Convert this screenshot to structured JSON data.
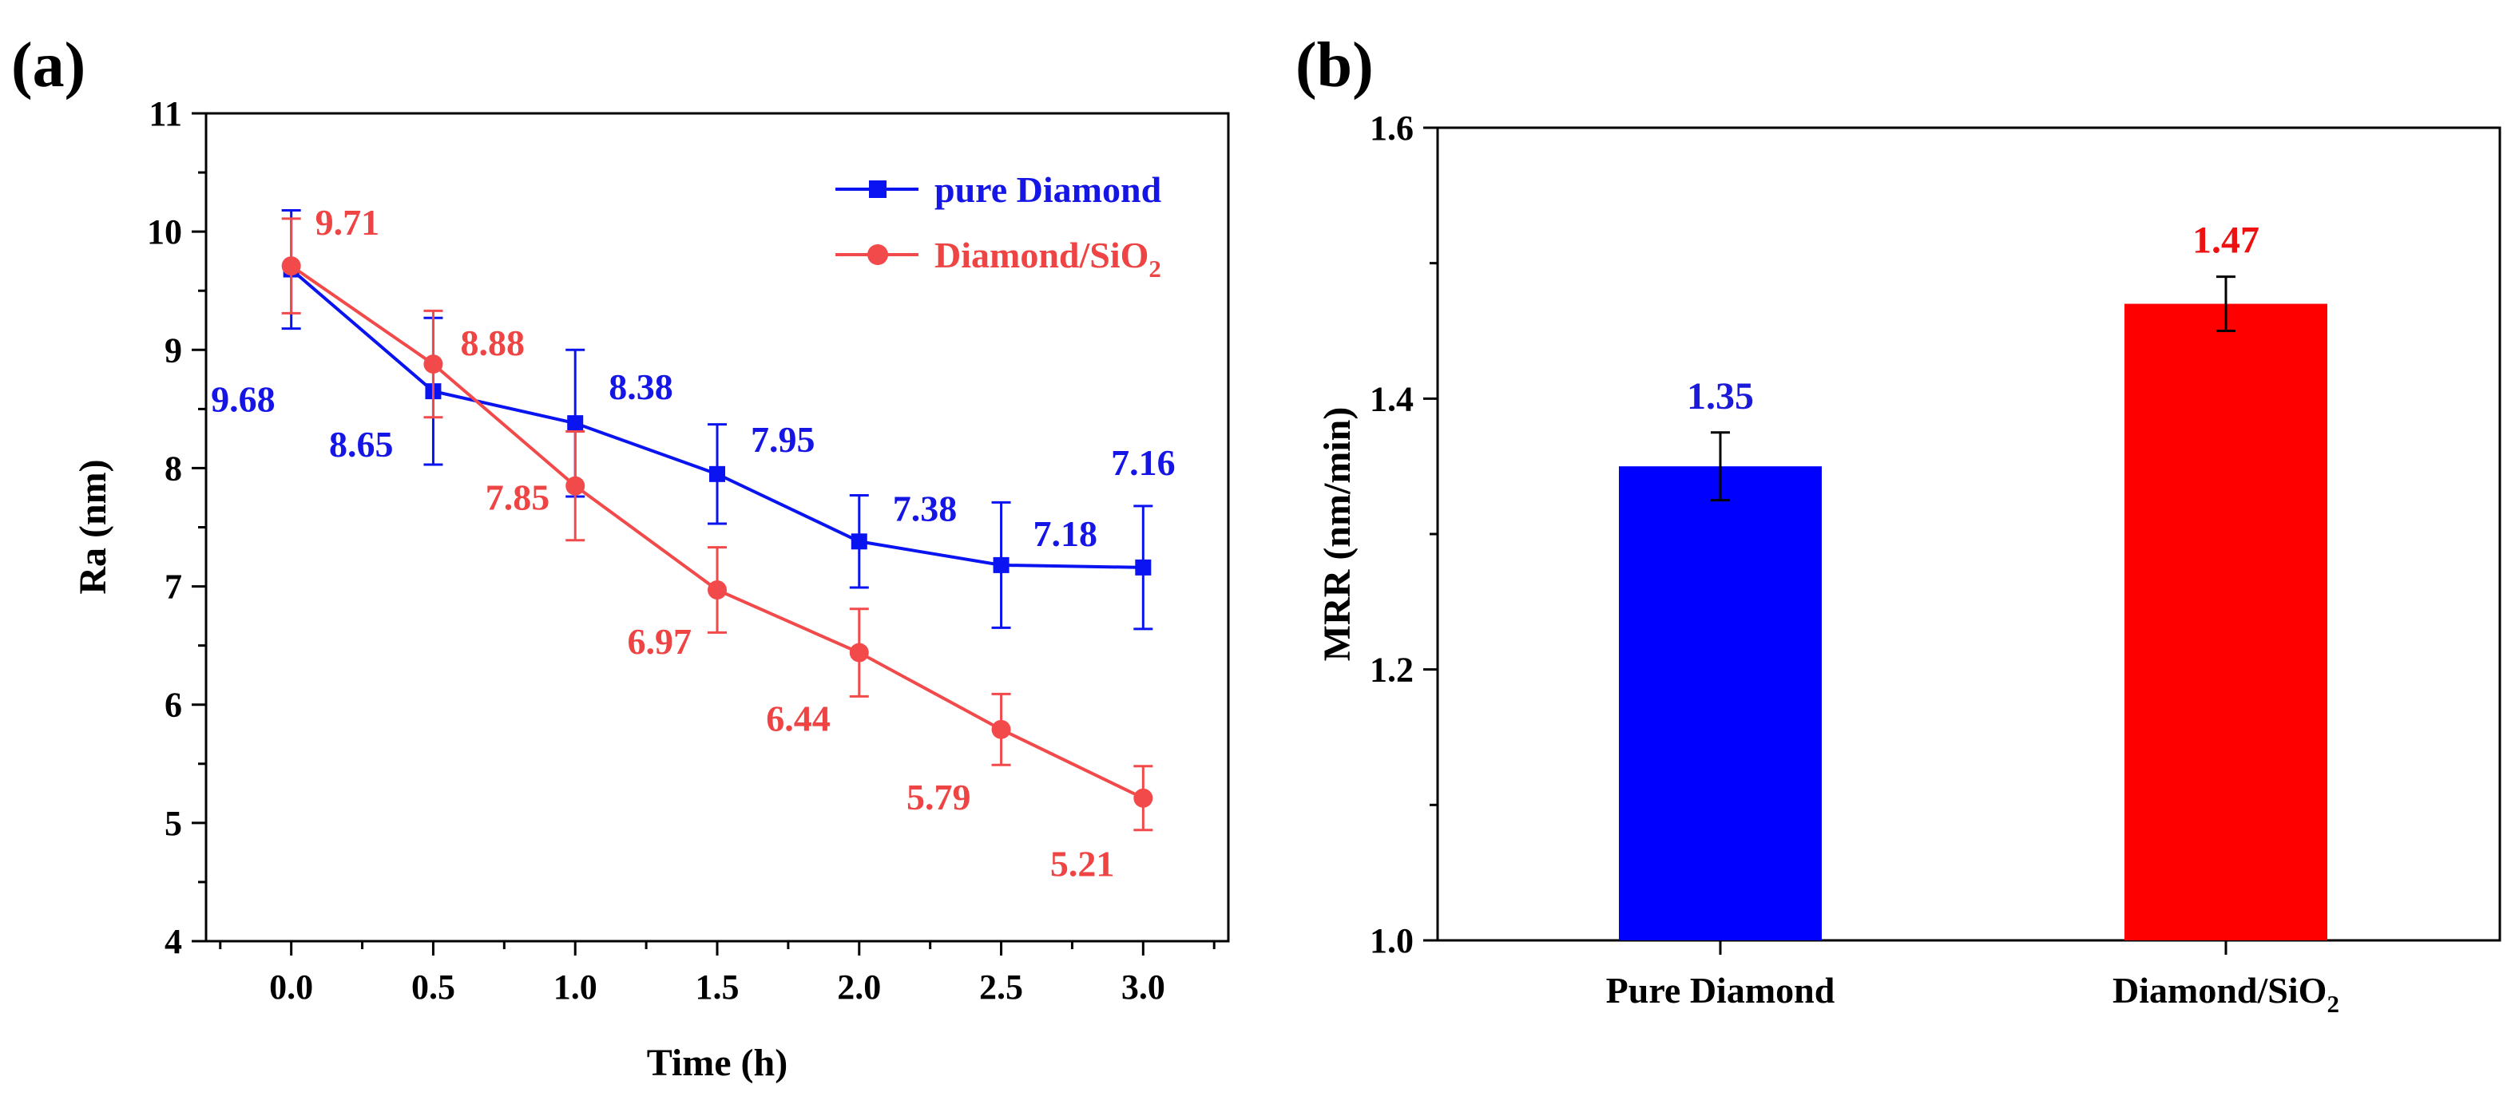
{
  "chart_data": [
    {
      "panel_label": "(a)",
      "type": "line",
      "xlabel": "Time (h)",
      "ylabel": "Ra (nm)",
      "xlim": [
        -0.3,
        3.3
      ],
      "ylim": [
        4,
        11
      ],
      "xticks": [
        "0.0",
        "0.5",
        "1.0",
        "1.5",
        "2.0",
        "2.5",
        "3.0"
      ],
      "yticks": [
        "4",
        "5",
        "6",
        "7",
        "8",
        "9",
        "10",
        "11"
      ],
      "x": [
        0.0,
        0.5,
        1.0,
        1.5,
        2.0,
        2.5,
        3.0
      ],
      "legend_position": "top-right",
      "series": [
        {
          "name": "pure Diamond",
          "name_prefix": "pure Diamond",
          "name_sub": "",
          "marker": "square",
          "color": "#0a14f0",
          "label_color": "#1515e6",
          "values": [
            9.68,
            8.65,
            8.38,
            7.95,
            7.38,
            7.18,
            7.16
          ],
          "errors": [
            0.5,
            0.62,
            0.62,
            0.42,
            0.39,
            0.53,
            0.52
          ],
          "labels": [
            "9.68",
            "8.65",
            "8.38",
            "7.95",
            "7.38",
            "7.18",
            "7.16"
          ]
        },
        {
          "name": "Diamond/SiO2",
          "name_prefix": "Diamond/SiO",
          "name_sub": "2",
          "marker": "circle",
          "color": "#f24a4a",
          "label_color": "#ee4444",
          "values": [
            9.71,
            8.88,
            7.85,
            6.97,
            6.44,
            5.79,
            5.21
          ],
          "errors": [
            0.4,
            0.45,
            0.46,
            0.36,
            0.37,
            0.3,
            0.27
          ],
          "labels": [
            "9.71",
            "8.88",
            "7.85",
            "6.97",
            "6.44",
            "5.79",
            "5.21"
          ]
        }
      ]
    },
    {
      "panel_label": "(b)",
      "type": "bar",
      "xlabel": "",
      "ylabel": "MRR (nm/min)",
      "ylim": [
        1.0,
        1.6
      ],
      "yticks": [
        "1.0",
        "1.2",
        "1.4",
        "1.6"
      ],
      "categories": [
        {
          "prefix": "Pure Diamond",
          "sub": ""
        },
        {
          "prefix": "Diamond/SiO",
          "sub": "2"
        }
      ],
      "values": [
        1.35,
        1.47
      ],
      "errors": [
        0.025,
        0.02
      ],
      "labels": [
        "1.35",
        "1.47"
      ],
      "colors": [
        "#0000ff",
        "#ff0000"
      ],
      "label_colors": [
        "#1a1ad8",
        "#ee1111"
      ]
    }
  ]
}
